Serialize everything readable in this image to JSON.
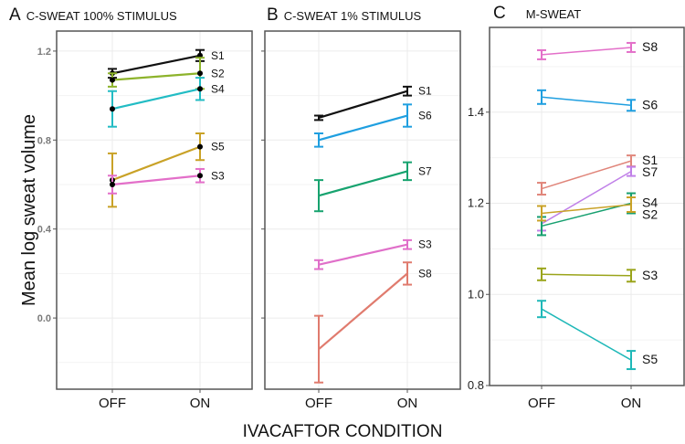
{
  "chart_data": [
    {
      "type": "line",
      "panel_letter": "A",
      "title": "C-SWEAT 100% STIMULUS",
      "ylabel": "Mean log sweat volume",
      "xlabel": "IVACAFTOR CONDITION",
      "categories": [
        "OFF",
        "ON"
      ],
      "ylim": [
        -0.32,
        1.29
      ],
      "yticks": [
        0.0,
        0.4,
        0.8,
        1.2
      ],
      "ytick_labels": [
        "0.0",
        "0.4",
        "0.8",
        "1.2"
      ],
      "grid": true,
      "points_marked": true,
      "series": [
        {
          "name": "S1",
          "color": "#111111",
          "values": [
            1.1,
            1.18
          ],
          "err": [
            0.02,
            0.025
          ]
        },
        {
          "name": "S2",
          "color": "#8db32b",
          "values": [
            1.07,
            1.1
          ],
          "err": [
            0.03,
            0.07
          ]
        },
        {
          "name": "S4",
          "color": "#22bcc4",
          "values": [
            0.94,
            1.03
          ],
          "err": [
            0.08,
            0.05
          ]
        },
        {
          "name": "S5",
          "color": "#c9a227",
          "values": [
            0.62,
            0.77
          ],
          "err": [
            0.12,
            0.06
          ]
        },
        {
          "name": "S3",
          "color": "#e36fc9",
          "values": [
            0.6,
            0.64
          ],
          "err": [
            0.04,
            0.03
          ]
        }
      ]
    },
    {
      "type": "line",
      "panel_letter": "B",
      "title": "C-SWEAT 1% STIMULUS",
      "categories": [
        "OFF",
        "ON"
      ],
      "ylim": [
        -0.32,
        1.29
      ],
      "yticks": [
        0.0,
        0.4,
        0.8,
        1.2
      ],
      "grid": true,
      "series": [
        {
          "name": "S1",
          "color": "#111111",
          "values": [
            0.9,
            1.02
          ],
          "err": [
            0.01,
            0.02
          ]
        },
        {
          "name": "S6",
          "color": "#1f9fe0",
          "values": [
            0.8,
            0.91
          ],
          "err": [
            0.03,
            0.05
          ]
        },
        {
          "name": "S7",
          "color": "#17a36f",
          "values": [
            0.55,
            0.66
          ],
          "err": [
            0.07,
            0.04
          ]
        },
        {
          "name": "S3",
          "color": "#e06fc9",
          "values": [
            0.24,
            0.33
          ],
          "err": [
            0.02,
            0.02
          ]
        },
        {
          "name": "S8",
          "color": "#e07b6e",
          "values": [
            -0.14,
            0.2
          ],
          "err": [
            0.15,
            0.05
          ]
        }
      ]
    },
    {
      "type": "line",
      "panel_letter": "C",
      "title": "M-SWEAT",
      "categories": [
        "OFF",
        "ON"
      ],
      "ylim": [
        0.8,
        1.586
      ],
      "yticks": [
        0.8,
        1.0,
        1.2,
        1.4
      ],
      "ytick_labels": [
        "0.8",
        "1.0",
        "1.2",
        "1.4"
      ],
      "grid": true,
      "series": [
        {
          "name": "S8",
          "color": "#e36fc9",
          "values": [
            1.526,
            1.542
          ],
          "err": [
            0.01,
            0.01
          ]
        },
        {
          "name": "S6",
          "color": "#1f9fe0",
          "values": [
            1.433,
            1.415
          ],
          "err": [
            0.015,
            0.012
          ]
        },
        {
          "name": "S1",
          "color": "#e0857a",
          "values": [
            1.232,
            1.293
          ],
          "err": [
            0.013,
            0.012
          ]
        },
        {
          "name": "S7",
          "color": "#c080e8",
          "values": [
            1.155,
            1.27
          ],
          "err": [
            0.015,
            0.01
          ]
        },
        {
          "name": "S4",
          "color": "#17a070",
          "values": [
            1.15,
            1.2
          ],
          "err": [
            0.02,
            0.022
          ]
        },
        {
          "name": "S2",
          "color": "#c9a227",
          "values": [
            1.178,
            1.197
          ],
          "err": [
            0.016,
            0.016
          ]
        },
        {
          "name": "S3",
          "color": "#9aa41a",
          "values": [
            1.044,
            1.041
          ],
          "err": [
            0.013,
            0.013
          ]
        },
        {
          "name": "S5",
          "color": "#1fb8b8",
          "values": [
            0.968,
            0.856
          ],
          "err": [
            0.018,
            0.02
          ]
        }
      ]
    }
  ]
}
